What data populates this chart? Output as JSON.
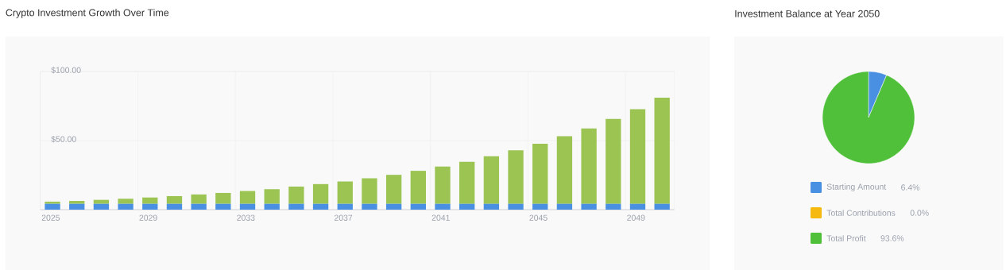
{
  "chart_data": [
    {
      "type": "bar",
      "title": "Crypto Investment Growth Over Time",
      "stacked": true,
      "grid": true,
      "categories": [
        "2025",
        null,
        null,
        null,
        "2029",
        null,
        null,
        null,
        "2033",
        null,
        null,
        null,
        "2037",
        null,
        null,
        null,
        "2041",
        null,
        null,
        null,
        "2045",
        null,
        null,
        null,
        "2049",
        null
      ],
      "series": [
        {
          "color": "#4a90e2",
          "values": [
            4.2,
            4.2,
            4.2,
            4.2,
            4.2,
            4.2,
            4.2,
            4.2,
            4.2,
            4.2,
            4.2,
            4.2,
            4.2,
            4.2,
            4.2,
            4.2,
            4.2,
            4.2,
            4.2,
            4.2,
            4.2,
            4.2,
            4.2,
            4.2,
            4.2,
            4.2
          ]
        },
        {
          "color": "#9bc453",
          "values": [
            1.6,
            2.1,
            2.9,
            3.7,
            4.6,
            5.6,
            6.8,
            7.9,
            9.3,
            10.6,
            12.5,
            14.3,
            16.2,
            18.5,
            21.0,
            23.9,
            27.0,
            30.4,
            34.5,
            38.7,
            43.5,
            48.9,
            54.6,
            61.4,
            68.5,
            76.8
          ]
        }
      ],
      "ylim": [
        0,
        100
      ],
      "yticks": [
        {
          "value": 50,
          "label": "$50.00"
        },
        {
          "value": 100,
          "label": "$100.00"
        }
      ]
    },
    {
      "type": "pie",
      "title": "Investment Balance at Year 2050",
      "categories": [
        "Starting Amount",
        "Total Contributions",
        "Total Profit"
      ],
      "values": [
        6.4,
        0.0,
        93.6
      ],
      "colors": [
        "#4a90e2",
        "#f5b90f",
        "#50c03a"
      ],
      "value_labels": [
        "6.4%",
        "0.0%",
        "93.6%"
      ],
      "legend": "bottom"
    }
  ]
}
